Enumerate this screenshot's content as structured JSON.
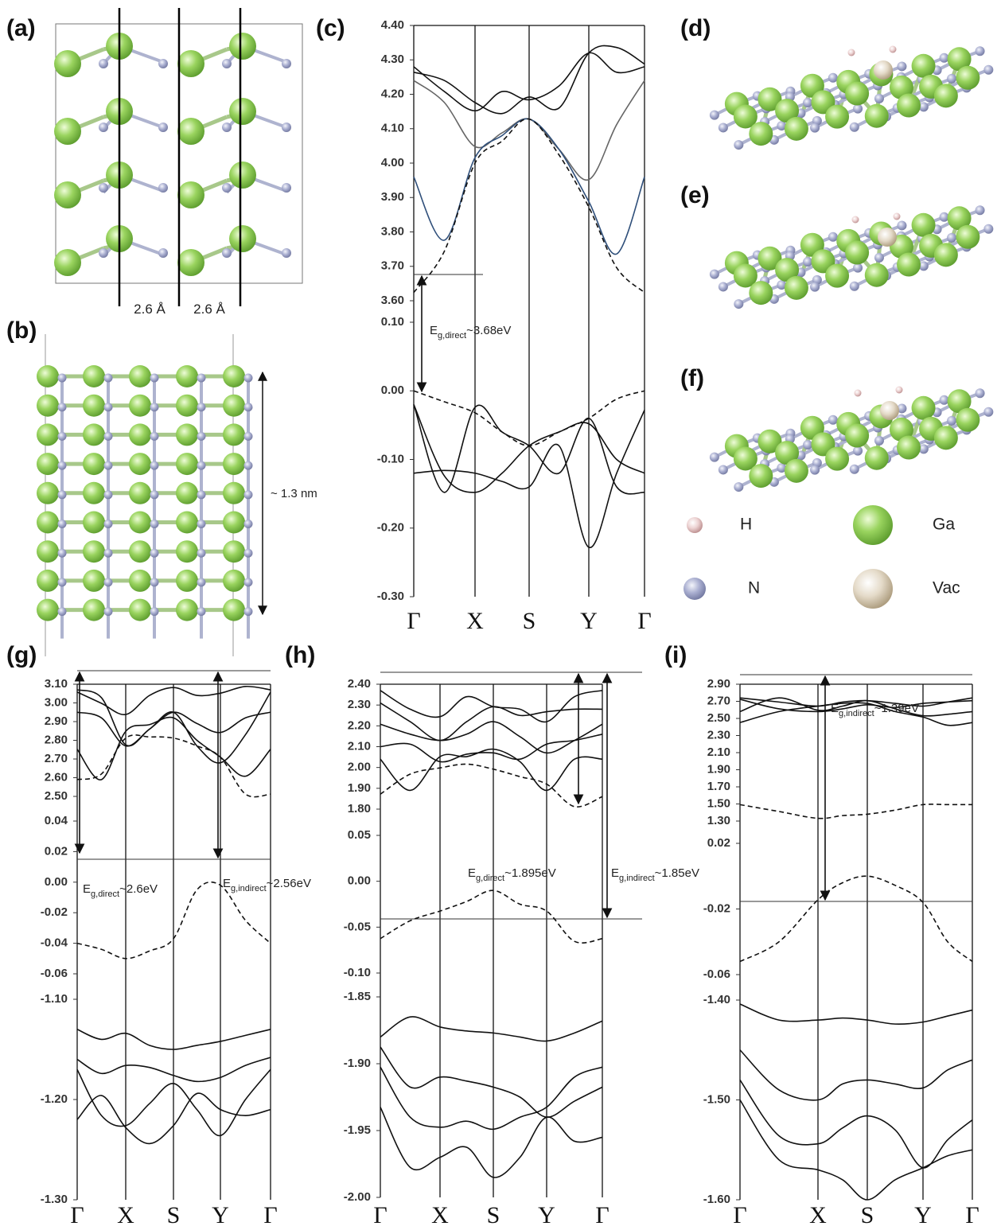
{
  "figure": {
    "a": {
      "label": "(a)",
      "spacing": [
        "2.6 Å",
        "2.6 Å"
      ]
    },
    "b": {
      "label": "(b)",
      "height": "~ 1.3 nm"
    },
    "c": {
      "label": "(c)",
      "ticks": [
        [
          "4.40",
          "4.30",
          "4.20",
          "4.10",
          "4.00",
          "3.90",
          "3.80",
          "3.70",
          "3.60"
        ],
        [
          "0.10",
          "0.00",
          "-0.10",
          "-0.20",
          "-0.30"
        ]
      ],
      "kpath": [
        "Γ",
        "X",
        "S",
        "Y",
        "Γ"
      ],
      "gaps": [
        {
          "symbol": "E",
          "sub": "g,direct",
          "value": "~3.68eV"
        }
      ]
    },
    "d": {
      "label": "(d)"
    },
    "e": {
      "label": "(e)"
    },
    "f": {
      "label": "(f)"
    },
    "legend": [
      {
        "label": "H"
      },
      {
        "label": "Ga"
      },
      {
        "label": "N"
      },
      {
        "label": "Vac"
      }
    ],
    "g": {
      "label": "(g)",
      "ticks": [
        [
          "3.10",
          "3.00",
          "2.90",
          "2.80",
          "2.70",
          "2.60",
          "2.50"
        ],
        [
          "0.04",
          "0.02",
          "0.00",
          "-0.02",
          "-0.04",
          "-0.06"
        ],
        [
          "-1.10",
          "-1.20",
          "-1.30"
        ]
      ],
      "kpath": [
        "Γ",
        "X",
        "S",
        "Y",
        "Γ"
      ],
      "gaps": [
        {
          "symbol": "E",
          "sub": "g,direct",
          "value": "~2.6eV"
        },
        {
          "symbol": "E",
          "sub": "g,indirect",
          "value": "~2.56eV"
        }
      ]
    },
    "h": {
      "label": "(h)",
      "ticks": [
        [
          "2.40",
          "2.30",
          "2.20",
          "2.10",
          "2.00",
          "1.90",
          "1.80"
        ],
        [
          "0.05",
          "0.00",
          "-0.05",
          "-0.10"
        ],
        [
          "-1.85",
          "-1.90",
          "-1.95",
          "-2.00"
        ]
      ],
      "kpath": [
        "Γ",
        "X",
        "S",
        "Y",
        "Γ"
      ],
      "gaps": [
        {
          "symbol": "E",
          "sub": "g,direct",
          "value": "~1.895eV"
        },
        {
          "symbol": "E",
          "sub": "g,indirect",
          "value": "~1.85eV"
        }
      ]
    },
    "i": {
      "label": "(i)",
      "ticks": [
        [
          "2.90",
          "2.70",
          "2.50",
          "2.30",
          "2.10",
          "1.90",
          "1.70",
          "1.50",
          "1.30"
        ],
        [
          "0.02",
          "-0.02",
          "-0.06"
        ],
        [
          "-1.40",
          "-1.50",
          "-1.60"
        ]
      ],
      "kpath": [
        "Γ",
        "X",
        "S",
        "Y",
        "Γ"
      ],
      "gaps": [
        {
          "symbol": "E",
          "sub": "g,indirect",
          "value": "~1.39eV"
        }
      ]
    }
  }
}
